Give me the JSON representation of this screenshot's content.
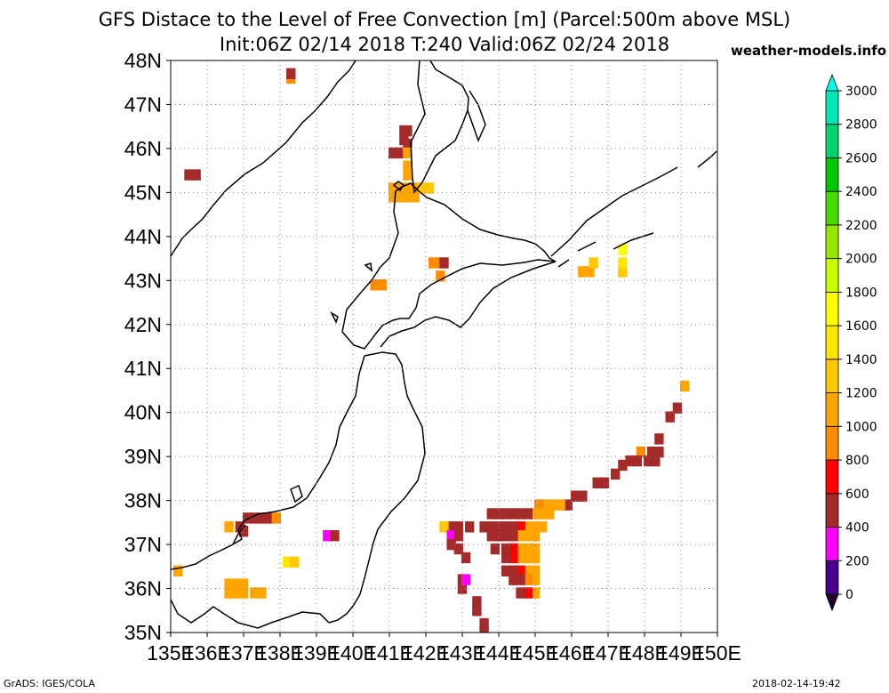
{
  "header": {
    "title_line1": "GFS Distace to the Level of Free Convection [m] (Parcel:500m above MSL)",
    "title_line2": "Init:06Z 02/14 2018 T:240 Valid:06Z 02/24 2018",
    "site": "weather-models.info"
  },
  "footer": {
    "left": "GrADS: IGES/COLA",
    "right": "2018-02-14-19:42"
  },
  "chart_data": {
    "type": "heatmap",
    "title": "GFS Distace to the Level of Free Convection [m] (Parcel:500m above MSL)",
    "subtitle": "Init:06Z 02/14 2018 T:240 Valid:06Z 02/24 2018",
    "xlim": [
      135,
      150
    ],
    "ylim": [
      35,
      48
    ],
    "x_ticks": [
      "135E",
      "136E",
      "137E",
      "138E",
      "139E",
      "140E",
      "141E",
      "142E",
      "143E",
      "144E",
      "145E",
      "146E",
      "147E",
      "148E",
      "149E",
      "150E"
    ],
    "y_ticks": [
      "35N",
      "36N",
      "37N",
      "38N",
      "39N",
      "40N",
      "41N",
      "42N",
      "43N",
      "44N",
      "45N",
      "46N",
      "47N",
      "48N"
    ],
    "grid": true,
    "colorbar": {
      "levels": [
        0,
        200,
        400,
        600,
        800,
        1000,
        1200,
        1400,
        1600,
        1800,
        2000,
        2200,
        2400,
        2600,
        2800,
        3000
      ],
      "tick_labels": [
        "0",
        "200",
        "400",
        "600",
        "800",
        "1000",
        "1200",
        "1400",
        "1600",
        "1800",
        "2000",
        "2200",
        "2400",
        "2600",
        "2800",
        "3000"
      ],
      "colors": [
        "#48008c",
        "#ff00ff",
        "#a52a2a",
        "#ff0000",
        "#ff8c00",
        "#ffa500",
        "#ffc800",
        "#ffe600",
        "#ffff00",
        "#c8ff00",
        "#96e600",
        "#46dc00",
        "#00c800",
        "#00d26e",
        "#00e6b4",
        "#00ffe6"
      ],
      "under_color": "#20002a",
      "over_color": "#00ffe6"
    },
    "cells": [
      {
        "lon": 138.3,
        "lat": 47.6,
        "v": 900
      },
      {
        "lon": 138.3,
        "lat": 47.7,
        "v": 500
      },
      {
        "lon": 135.5,
        "lat": 45.4,
        "v": 400
      },
      {
        "lon": 135.7,
        "lat": 45.4,
        "v": 400
      },
      {
        "lon": 141.4,
        "lat": 46.4,
        "v": 500
      },
      {
        "lon": 141.5,
        "lat": 46.4,
        "v": 500
      },
      {
        "lon": 141.4,
        "lat": 46.2,
        "v": 400
      },
      {
        "lon": 141.5,
        "lat": 46.1,
        "v": 500
      },
      {
        "lon": 141.1,
        "lat": 45.9,
        "v": 500
      },
      {
        "lon": 141.3,
        "lat": 45.9,
        "v": 500
      },
      {
        "lon": 141.5,
        "lat": 45.9,
        "v": 1000
      },
      {
        "lon": 141.5,
        "lat": 45.6,
        "v": 1000
      },
      {
        "lon": 141.5,
        "lat": 45.4,
        "v": 1000
      },
      {
        "lon": 141.1,
        "lat": 45.1,
        "v": 1000
      },
      {
        "lon": 141.3,
        "lat": 45.1,
        "v": 1000
      },
      {
        "lon": 141.5,
        "lat": 45.1,
        "v": 1000
      },
      {
        "lon": 141.7,
        "lat": 45.1,
        "v": 1000
      },
      {
        "lon": 141.9,
        "lat": 45.1,
        "v": 1200
      },
      {
        "lon": 142.1,
        "lat": 45.1,
        "v": 1200
      },
      {
        "lon": 141.1,
        "lat": 44.9,
        "v": 1000
      },
      {
        "lon": 141.3,
        "lat": 44.9,
        "v": 1000
      },
      {
        "lon": 141.5,
        "lat": 44.9,
        "v": 1000
      },
      {
        "lon": 141.7,
        "lat": 44.9,
        "v": 1000
      },
      {
        "lon": 142.2,
        "lat": 43.4,
        "v": 900
      },
      {
        "lon": 142.4,
        "lat": 43.4,
        "v": 800
      },
      {
        "lon": 142.5,
        "lat": 43.4,
        "v": 500
      },
      {
        "lon": 142.4,
        "lat": 43.1,
        "v": 900
      },
      {
        "lon": 140.6,
        "lat": 42.9,
        "v": 900
      },
      {
        "lon": 140.8,
        "lat": 42.9,
        "v": 900
      },
      {
        "lon": 146.3,
        "lat": 43.2,
        "v": 1100
      },
      {
        "lon": 146.5,
        "lat": 43.2,
        "v": 1100
      },
      {
        "lon": 146.6,
        "lat": 43.4,
        "v": 1200
      },
      {
        "lon": 147.4,
        "lat": 43.2,
        "v": 1300
      },
      {
        "lon": 147.4,
        "lat": 43.4,
        "v": 1400
      },
      {
        "lon": 147.4,
        "lat": 43.7,
        "v": 1700
      },
      {
        "lon": 149.1,
        "lat": 40.6,
        "v": 1000
      },
      {
        "lon": 148.9,
        "lat": 40.1,
        "v": 500
      },
      {
        "lon": 148.7,
        "lat": 39.9,
        "v": 500
      },
      {
        "lon": 148.4,
        "lat": 39.4,
        "v": 500
      },
      {
        "lon": 148.2,
        "lat": 39.1,
        "v": 500
      },
      {
        "lon": 148.4,
        "lat": 39.1,
        "v": 500
      },
      {
        "lon": 147.9,
        "lat": 39.1,
        "v": 900
      },
      {
        "lon": 148.1,
        "lat": 38.9,
        "v": 500
      },
      {
        "lon": 148.3,
        "lat": 38.9,
        "v": 500
      },
      {
        "lon": 147.6,
        "lat": 38.9,
        "v": 500
      },
      {
        "lon": 147.8,
        "lat": 38.9,
        "v": 500
      },
      {
        "lon": 147.4,
        "lat": 38.8,
        "v": 500
      },
      {
        "lon": 147.2,
        "lat": 38.6,
        "v": 500
      },
      {
        "lon": 146.9,
        "lat": 38.4,
        "v": 500
      },
      {
        "lon": 146.7,
        "lat": 38.4,
        "v": 500
      },
      {
        "lon": 146.3,
        "lat": 38.1,
        "v": 500
      },
      {
        "lon": 146.1,
        "lat": 38.1,
        "v": 500
      },
      {
        "lon": 145.9,
        "lat": 37.9,
        "v": 500
      },
      {
        "lon": 145.7,
        "lat": 37.9,
        "v": 1000
      },
      {
        "lon": 145.5,
        "lat": 37.9,
        "v": 1000
      },
      {
        "lon": 145.3,
        "lat": 37.9,
        "v": 1000
      },
      {
        "lon": 145.1,
        "lat": 37.9,
        "v": 900
      },
      {
        "lon": 145.4,
        "lat": 37.7,
        "v": 1000
      },
      {
        "lon": 145.2,
        "lat": 37.7,
        "v": 1000
      },
      {
        "lon": 145.0,
        "lat": 37.7,
        "v": 1000
      },
      {
        "lon": 144.8,
        "lat": 37.7,
        "v": 500
      },
      {
        "lon": 144.6,
        "lat": 37.7,
        "v": 500
      },
      {
        "lon": 144.4,
        "lat": 37.7,
        "v": 500
      },
      {
        "lon": 144.2,
        "lat": 37.7,
        "v": 500
      },
      {
        "lon": 144.0,
        "lat": 37.7,
        "v": 500
      },
      {
        "lon": 143.8,
        "lat": 37.7,
        "v": 400
      },
      {
        "lon": 145.2,
        "lat": 37.4,
        "v": 1000
      },
      {
        "lon": 145.0,
        "lat": 37.4,
        "v": 1000
      },
      {
        "lon": 144.8,
        "lat": 37.4,
        "v": 1000
      },
      {
        "lon": 144.6,
        "lat": 37.4,
        "v": 700
      },
      {
        "lon": 144.4,
        "lat": 37.4,
        "v": 500
      },
      {
        "lon": 144.2,
        "lat": 37.4,
        "v": 500
      },
      {
        "lon": 144.0,
        "lat": 37.4,
        "v": 400
      },
      {
        "lon": 143.8,
        "lat": 37.4,
        "v": 400
      },
      {
        "lon": 143.6,
        "lat": 37.4,
        "v": 400
      },
      {
        "lon": 145.0,
        "lat": 37.2,
        "v": 1000
      },
      {
        "lon": 144.8,
        "lat": 37.2,
        "v": 1000
      },
      {
        "lon": 144.6,
        "lat": 37.2,
        "v": 1000
      },
      {
        "lon": 144.4,
        "lat": 37.2,
        "v": 500
      },
      {
        "lon": 144.2,
        "lat": 37.2,
        "v": 500
      },
      {
        "lon": 144.0,
        "lat": 37.2,
        "v": 400
      },
      {
        "lon": 143.8,
        "lat": 37.2,
        "v": 400
      },
      {
        "lon": 145.0,
        "lat": 36.9,
        "v": 1000
      },
      {
        "lon": 144.8,
        "lat": 36.9,
        "v": 1000
      },
      {
        "lon": 144.6,
        "lat": 36.9,
        "v": 1000
      },
      {
        "lon": 144.4,
        "lat": 36.9,
        "v": 700
      },
      {
        "lon": 144.2,
        "lat": 36.9,
        "v": 500
      },
      {
        "lon": 143.9,
        "lat": 36.9,
        "v": 400
      },
      {
        "lon": 145.0,
        "lat": 36.7,
        "v": 1000
      },
      {
        "lon": 144.8,
        "lat": 36.7,
        "v": 1000
      },
      {
        "lon": 144.6,
        "lat": 36.7,
        "v": 1000
      },
      {
        "lon": 144.4,
        "lat": 36.7,
        "v": 700
      },
      {
        "lon": 144.2,
        "lat": 36.7,
        "v": 500
      },
      {
        "lon": 145.0,
        "lat": 36.4,
        "v": 1000
      },
      {
        "lon": 144.8,
        "lat": 36.4,
        "v": 1000
      },
      {
        "lon": 144.6,
        "lat": 36.4,
        "v": 700
      },
      {
        "lon": 144.4,
        "lat": 36.4,
        "v": 500
      },
      {
        "lon": 144.2,
        "lat": 36.4,
        "v": 500
      },
      {
        "lon": 145.0,
        "lat": 36.2,
        "v": 1000
      },
      {
        "lon": 144.8,
        "lat": 36.2,
        "v": 900
      },
      {
        "lon": 144.6,
        "lat": 36.2,
        "v": 500
      },
      {
        "lon": 144.4,
        "lat": 36.2,
        "v": 500
      },
      {
        "lon": 145.0,
        "lat": 35.9,
        "v": 1000
      },
      {
        "lon": 144.8,
        "lat": 35.9,
        "v": 700
      },
      {
        "lon": 144.6,
        "lat": 35.9,
        "v": 500
      },
      {
        "lon": 143.2,
        "lat": 37.4,
        "v": 400
      },
      {
        "lon": 142.9,
        "lat": 37.4,
        "v": 400
      },
      {
        "lon": 142.7,
        "lat": 37.4,
        "v": 400
      },
      {
        "lon": 142.5,
        "lat": 37.4,
        "v": 1300
      },
      {
        "lon": 142.7,
        "lat": 37.2,
        "v": 200
      },
      {
        "lon": 142.9,
        "lat": 37.2,
        "v": 400
      },
      {
        "lon": 142.7,
        "lat": 37.0,
        "v": 400
      },
      {
        "lon": 142.9,
        "lat": 36.9,
        "v": 500
      },
      {
        "lon": 143.1,
        "lat": 36.7,
        "v": 500
      },
      {
        "lon": 143.0,
        "lat": 36.2,
        "v": 500
      },
      {
        "lon": 143.0,
        "lat": 36.0,
        "v": 500
      },
      {
        "lon": 143.1,
        "lat": 36.2,
        "v": 200
      },
      {
        "lon": 143.4,
        "lat": 35.7,
        "v": 500
      },
      {
        "lon": 143.4,
        "lat": 35.5,
        "v": 500
      },
      {
        "lon": 143.6,
        "lat": 35.2,
        "v": 500
      },
      {
        "lon": 143.6,
        "lat": 35.0,
        "v": 400
      },
      {
        "lon": 137.1,
        "lat": 37.6,
        "v": 500
      },
      {
        "lon": 137.3,
        "lat": 37.6,
        "v": 500
      },
      {
        "lon": 137.5,
        "lat": 37.6,
        "v": 500
      },
      {
        "lon": 137.7,
        "lat": 37.6,
        "v": 500
      },
      {
        "lon": 137.9,
        "lat": 37.6,
        "v": 900
      },
      {
        "lon": 136.6,
        "lat": 37.4,
        "v": 1000
      },
      {
        "lon": 136.9,
        "lat": 37.4,
        "v": 500
      },
      {
        "lon": 137.0,
        "lat": 37.3,
        "v": 500
      },
      {
        "lon": 139.3,
        "lat": 37.2,
        "v": 200
      },
      {
        "lon": 139.5,
        "lat": 37.2,
        "v": 500
      },
      {
        "lon": 138.2,
        "lat": 36.6,
        "v": 1500
      },
      {
        "lon": 138.4,
        "lat": 36.6,
        "v": 1200
      },
      {
        "lon": 135.2,
        "lat": 36.4,
        "v": 1000
      },
      {
        "lon": 136.6,
        "lat": 36.1,
        "v": 1000
      },
      {
        "lon": 136.8,
        "lat": 36.1,
        "v": 1000
      },
      {
        "lon": 137.0,
        "lat": 36.1,
        "v": 1000
      },
      {
        "lon": 136.6,
        "lat": 35.9,
        "v": 1000
      },
      {
        "lon": 136.8,
        "lat": 35.9,
        "v": 1000
      },
      {
        "lon": 137.0,
        "lat": 35.9,
        "v": 1000
      },
      {
        "lon": 137.3,
        "lat": 35.9,
        "v": 1000
      },
      {
        "lon": 137.5,
        "lat": 35.9,
        "v": 1000
      }
    ]
  }
}
